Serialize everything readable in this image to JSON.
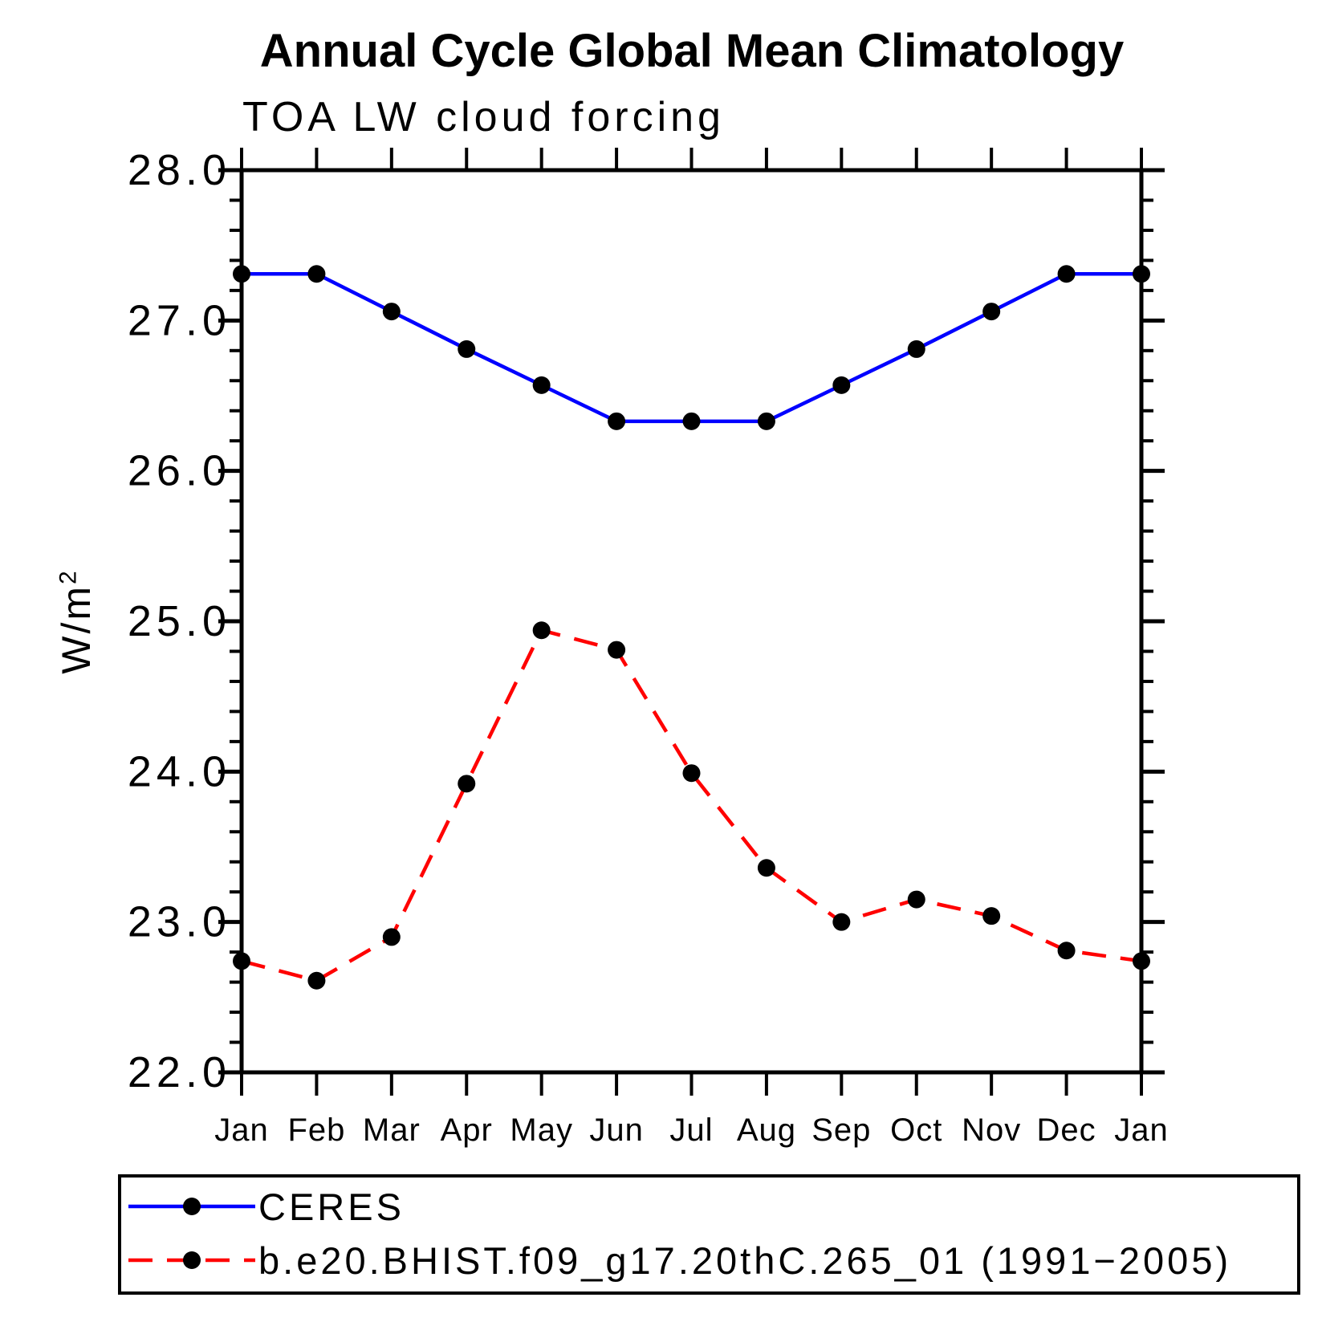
{
  "page": {
    "background": "#ffffff"
  },
  "header": {
    "title": "Annual Cycle Global Mean Climatology",
    "subtitle": "TOA LW cloud forcing"
  },
  "y_axis": {
    "label_base": "W/m",
    "label_sup": "2",
    "tick_labels": [
      "28.0",
      "27.0",
      "26.0",
      "25.0",
      "24.0",
      "23.0",
      "22.0"
    ]
  },
  "x_axis": {
    "tick_labels": [
      "Jan",
      "Feb",
      "Mar",
      "Apr",
      "May",
      "Jun",
      "Jul",
      "Aug",
      "Sep",
      "Oct",
      "Nov",
      "Dec",
      "Jan"
    ]
  },
  "legend": {
    "entries": [
      {
        "label": "CERES",
        "color": "#0000ff",
        "style": "solid"
      },
      {
        "label": "b.e20.BHIST.f09_g17.20thC.265_01 (1991−2005)",
        "color": "#ff0000",
        "style": "dashed"
      }
    ]
  },
  "colors": {
    "axis": "#000000",
    "marker": "#000000",
    "ceres_line": "#0000ff",
    "model_line": "#ff0000",
    "text": "#000000"
  },
  "chart_data": {
    "type": "line",
    "title": "Annual Cycle Global Mean Climatology",
    "subtitle": "TOA LW cloud forcing",
    "xlabel": "",
    "ylabel": "W/m²",
    "categories": [
      "Jan",
      "Feb",
      "Mar",
      "Apr",
      "May",
      "Jun",
      "Jul",
      "Aug",
      "Sep",
      "Oct",
      "Nov",
      "Dec",
      "Jan"
    ],
    "series": [
      {
        "name": "CERES",
        "color": "#0000ff",
        "line_style": "solid",
        "marker": "filled-circle",
        "marker_color": "#000000",
        "values": [
          27.31,
          27.31,
          27.06,
          26.81,
          26.57,
          26.33,
          26.33,
          26.33,
          26.57,
          26.81,
          27.06,
          27.31,
          27.31
        ]
      },
      {
        "name": "b.e20.BHIST.f09_g17.20thC.265_01 (1991−2005)",
        "color": "#ff0000",
        "line_style": "dashed",
        "marker": "filled-circle",
        "marker_color": "#000000",
        "values": [
          22.74,
          22.61,
          22.9,
          23.92,
          24.94,
          24.81,
          23.99,
          23.36,
          23.0,
          23.15,
          23.04,
          22.81,
          22.74
        ]
      }
    ],
    "ylim": [
      22.0,
      28.0
    ],
    "ytick_major_step": 1.0,
    "ytick_minor_step": 0.2,
    "ytick_label_format": "one-decimal",
    "grid": false,
    "legend_position": "bottom-left-box"
  }
}
